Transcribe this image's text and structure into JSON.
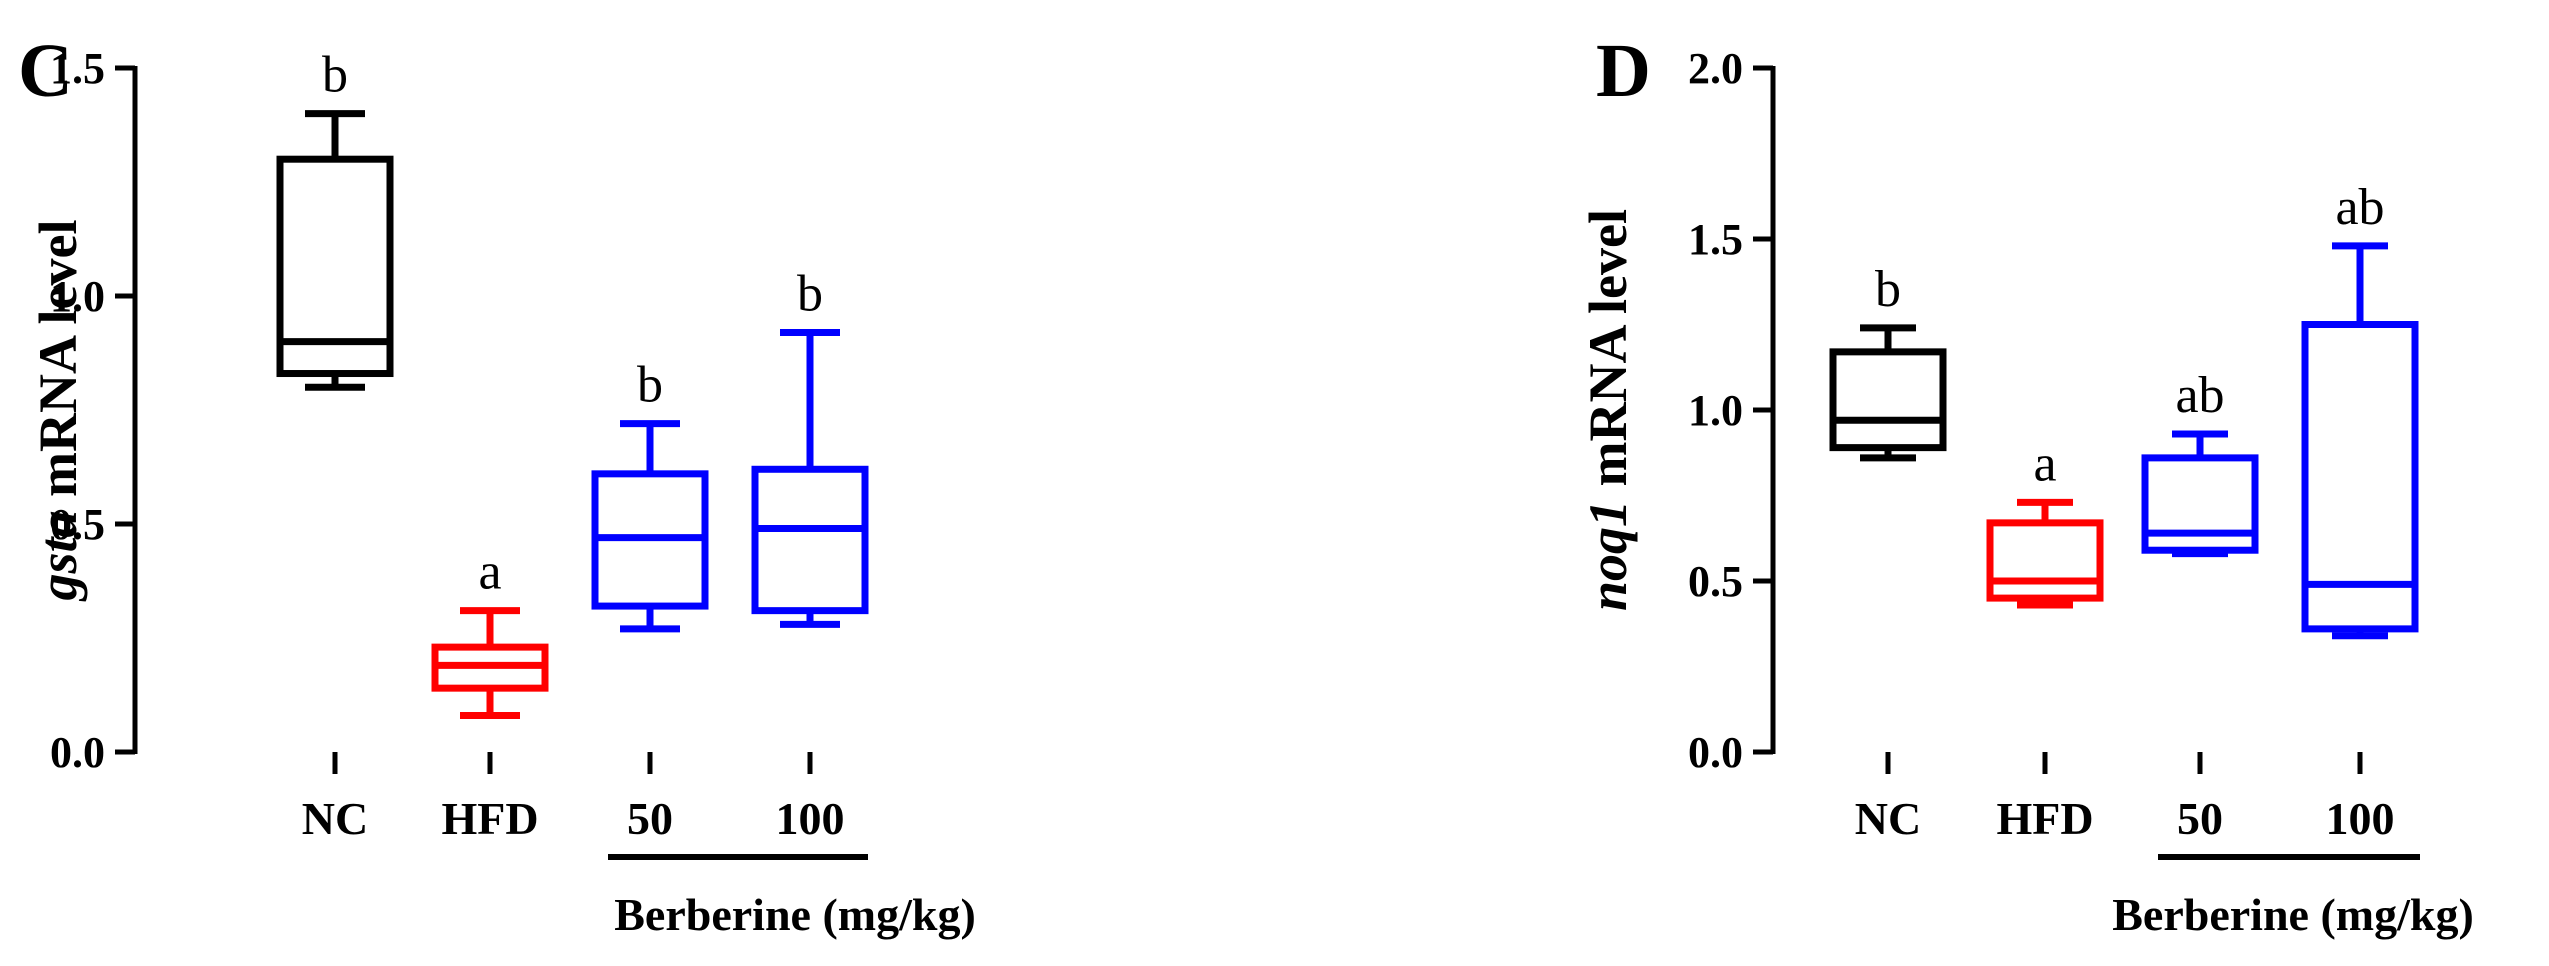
{
  "chart_data": [
    {
      "type": "box",
      "panel": "C",
      "ylabel_gene": "gsta",
      "ylabel_rest": " mRNA level",
      "ylim": [
        0,
        1.5
      ],
      "yticks": [
        "0.0",
        "0.5",
        "1.0",
        "1.5"
      ],
      "ytick_values": [
        0,
        0.5,
        1.0,
        1.5
      ],
      "categories": [
        "NC",
        "HFD",
        "50",
        "100"
      ],
      "group_label": "Berberine (mg/kg)",
      "colors": [
        "#000000",
        "#ff0000",
        "#0000ff",
        "#0000ff"
      ],
      "boxes": [
        {
          "min": 0.8,
          "q1": 0.83,
          "median": 0.9,
          "q3": 1.3,
          "max": 1.4,
          "label": "b"
        },
        {
          "min": 0.08,
          "q1": 0.14,
          "median": 0.19,
          "q3": 0.23,
          "max": 0.31,
          "label": "a"
        },
        {
          "min": 0.27,
          "q1": 0.32,
          "median": 0.47,
          "q3": 0.61,
          "max": 0.72,
          "label": "b"
        },
        {
          "min": 0.28,
          "q1": 0.31,
          "median": 0.49,
          "q3": 0.62,
          "max": 0.92,
          "label": "b"
        }
      ]
    },
    {
      "type": "box",
      "panel": "D",
      "ylabel_gene": "noq1",
      "ylabel_rest": " mRNA level",
      "ylim": [
        0,
        2.0
      ],
      "yticks": [
        "0.0",
        "0.5",
        "1.0",
        "1.5",
        "2.0"
      ],
      "ytick_values": [
        0,
        0.5,
        1.0,
        1.5,
        2.0
      ],
      "categories": [
        "NC",
        "HFD",
        "50",
        "100"
      ],
      "group_label": "Berberine (mg/kg)",
      "colors": [
        "#000000",
        "#ff0000",
        "#0000ff",
        "#0000ff"
      ],
      "boxes": [
        {
          "min": 0.86,
          "q1": 0.89,
          "median": 0.97,
          "q3": 1.17,
          "max": 1.24,
          "label": "b"
        },
        {
          "min": 0.43,
          "q1": 0.45,
          "median": 0.5,
          "q3": 0.67,
          "max": 0.73,
          "label": "a"
        },
        {
          "min": 0.58,
          "q1": 0.59,
          "median": 0.64,
          "q3": 0.86,
          "max": 0.93,
          "label": "ab"
        },
        {
          "min": 0.34,
          "q1": 0.36,
          "median": 0.49,
          "q3": 1.25,
          "max": 1.48,
          "label": "ab"
        }
      ]
    }
  ]
}
